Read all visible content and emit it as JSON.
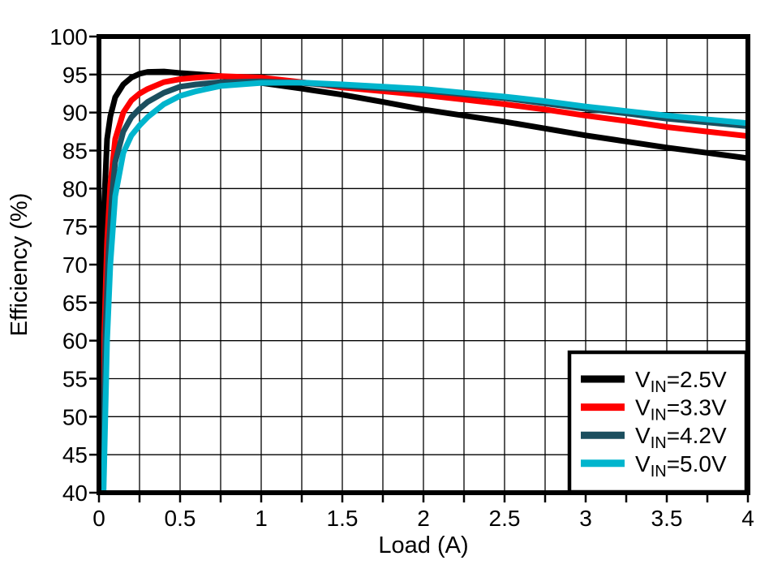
{
  "chart_data": {
    "type": "line",
    "title": "",
    "xlabel": "Load (A)",
    "ylabel": "Efficiency (%)",
    "xlim": [
      0,
      4
    ],
    "ylim": [
      40,
      100
    ],
    "x_grid_step": 0.25,
    "y_grid_step": 5,
    "grid": true,
    "x_major_ticks": [
      0,
      0.5,
      1,
      1.5,
      2,
      2.5,
      3,
      3.5,
      4
    ],
    "x_tick_labels": [
      "0",
      "0.5",
      "1",
      "1.5",
      "2",
      "2.5",
      "3",
      "3.5",
      "4"
    ],
    "y_major_ticks": [
      100,
      95,
      90,
      85,
      80,
      75,
      70,
      65,
      60,
      55,
      50,
      45,
      40
    ],
    "y_tick_labels": [
      "100",
      "95",
      "90",
      "85",
      "80",
      "75",
      "70",
      "65",
      "60",
      "55",
      "50",
      "45",
      "40"
    ],
    "axis_color": "#000000",
    "grid_color": "#000000",
    "legend_position": "bottom-right",
    "series": [
      {
        "label": "VIN=2.5V",
        "label_base": "V",
        "label_sub": "IN",
        "label_rest": "=2.5V",
        "color": "#000000",
        "x": [
          0.012,
          0.02,
          0.03,
          0.05,
          0.07,
          0.1,
          0.15,
          0.2,
          0.25,
          0.3,
          0.4,
          0.5,
          0.6,
          0.75,
          1.0,
          1.25,
          1.5,
          1.75,
          2.0,
          2.25,
          2.5,
          2.75,
          3.0,
          3.25,
          3.5,
          3.75,
          4.0
        ],
        "y": [
          40,
          63,
          77,
          86.5,
          89.5,
          92.0,
          93.7,
          94.6,
          95.1,
          95.35,
          95.4,
          95.2,
          95.05,
          94.8,
          93.9,
          93.15,
          92.35,
          91.4,
          90.4,
          89.6,
          88.8,
          87.9,
          87.0,
          86.2,
          85.4,
          84.7,
          84.0
        ]
      },
      {
        "label": "VIN=3.3V",
        "label_base": "V",
        "label_sub": "IN",
        "label_rest": "=3.3V",
        "color": "#FF0000",
        "x": [
          0.018,
          0.03,
          0.05,
          0.07,
          0.1,
          0.15,
          0.2,
          0.25,
          0.3,
          0.4,
          0.5,
          0.6,
          0.75,
          1.0,
          1.25,
          1.5,
          1.75,
          2.0,
          2.25,
          2.5,
          2.75,
          3.0,
          3.25,
          3.5,
          3.75,
          4.0
        ],
        "y": [
          40,
          59,
          73,
          80.5,
          86.5,
          90.0,
          91.6,
          92.5,
          93.1,
          94.0,
          94.4,
          94.6,
          94.8,
          94.6,
          94.0,
          93.3,
          92.8,
          92.3,
          91.7,
          91.1,
          90.4,
          89.6,
          88.9,
          88.1,
          87.5,
          86.9
        ]
      },
      {
        "label": "VIN=4.2V",
        "label_base": "V",
        "label_sub": "IN",
        "label_rest": "=4.2V",
        "color": "#1B4E5E",
        "x": [
          0.022,
          0.04,
          0.06,
          0.08,
          0.1,
          0.15,
          0.2,
          0.25,
          0.3,
          0.4,
          0.5,
          0.6,
          0.75,
          1.0,
          1.25,
          1.5,
          1.75,
          2.0,
          2.25,
          2.5,
          2.75,
          3.0,
          3.25,
          3.5,
          3.75,
          4.0
        ],
        "y": [
          40,
          61,
          72,
          79,
          83.5,
          87.5,
          89.4,
          90.5,
          91.4,
          92.6,
          93.4,
          93.7,
          94.0,
          94.1,
          93.9,
          93.5,
          93.2,
          92.9,
          92.4,
          91.9,
          91.2,
          90.5,
          89.9,
          89.2,
          88.7,
          88.2
        ]
      },
      {
        "label": "VIN=5.0V",
        "label_base": "V",
        "label_sub": "IN",
        "label_rest": "=5.0V",
        "color": "#00B5CD",
        "x": [
          0.028,
          0.05,
          0.07,
          0.1,
          0.15,
          0.2,
          0.25,
          0.3,
          0.4,
          0.5,
          0.6,
          0.75,
          1.0,
          1.25,
          1.5,
          1.75,
          2.0,
          2.25,
          2.5,
          2.75,
          3.0,
          3.25,
          3.5,
          3.75,
          4.0
        ],
        "y": [
          40,
          60,
          70,
          79.0,
          84.7,
          87.0,
          88.3,
          89.4,
          91.1,
          92.2,
          92.8,
          93.5,
          93.9,
          93.95,
          93.7,
          93.4,
          93.1,
          92.6,
          92.1,
          91.5,
          90.8,
          90.2,
          89.6,
          89.1,
          88.6
        ]
      }
    ]
  }
}
